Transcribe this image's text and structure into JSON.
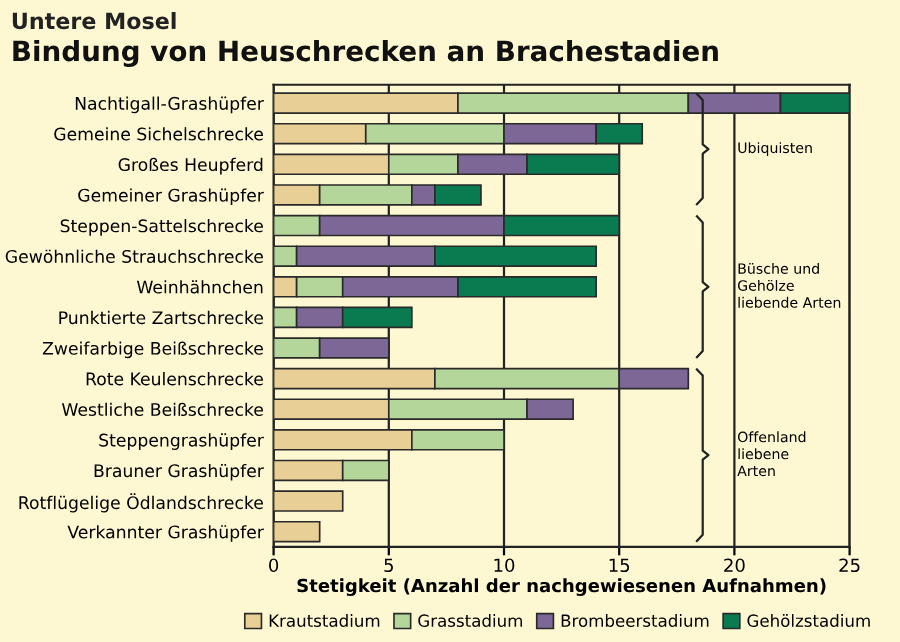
{
  "chart_data": {
    "type": "bar",
    "orientation": "horizontal",
    "stacked": true,
    "subtitle": "Untere Mosel",
    "title": "Bindung von Heuschrecken an Brachestadien",
    "xlabel": "Stetigkeit (Anzahl der nachgewiesenen Aufnahmen)",
    "categories": [
      "Nachtigall-Grashüpfer",
      "Gemeine Sichelschrecke",
      "Großes Heupferd",
      "Gemeiner Grashüpfer",
      "Steppen-Sattelschrecke",
      "Gewöhnliche Strauchschrecke",
      "Weinhähnchen",
      "Punktierte Zartschrecke",
      "Zweifarbige Beißschrecke",
      "Rote Keulenschrecke",
      "Westliche Beißschrecke",
      "Steppengrashüpfer",
      "Brauner Grashüpfer",
      "Rotflügelige Ödlandschrecke",
      "Verkannter Grashüpfer"
    ],
    "series": [
      {
        "name": "Krautstadium",
        "color": "#e8cf95",
        "values": [
          8,
          4,
          5,
          2,
          0,
          0,
          1,
          0,
          0,
          7,
          5,
          6,
          3,
          3,
          2
        ]
      },
      {
        "name": "Grasstadium",
        "color": "#b5d69b",
        "values": [
          10,
          6,
          3,
          4,
          2,
          1,
          2,
          1,
          2,
          8,
          6,
          4,
          2,
          0,
          0
        ]
      },
      {
        "name": "Brombeerstadium",
        "color": "#7c6796",
        "values": [
          4,
          4,
          3,
          1,
          8,
          6,
          5,
          2,
          3,
          3,
          2,
          0,
          0,
          0,
          0
        ]
      },
      {
        "name": "Gehölzstadium",
        "color": "#0a7a50",
        "values": [
          3,
          2,
          4,
          2,
          5,
          7,
          6,
          3,
          0,
          0,
          0,
          0,
          0,
          0,
          0
        ]
      }
    ],
    "xlim": [
      0,
      25
    ],
    "xticks": [
      0,
      5,
      10,
      15,
      20,
      25
    ],
    "grid": "x",
    "legend": "bottom",
    "annotations": [
      "Ubiquisten",
      "Büsche und\nGehölze\nliebende Arten",
      "Offenland\nliebene\nArten"
    ]
  }
}
